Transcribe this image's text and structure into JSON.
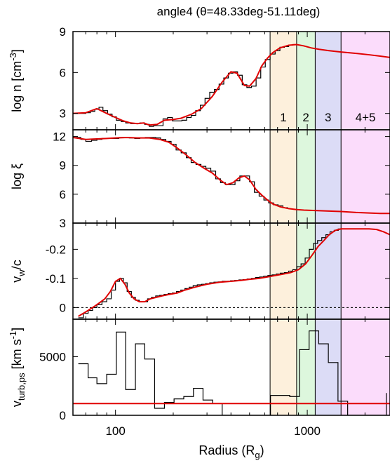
{
  "title": "angle4 (θ=48.33deg-51.11deg)",
  "colors": {
    "data_black": "#000000",
    "model_red": "#e00000",
    "region1": "#fdf0dc",
    "region2": "#ddf7dd",
    "region3": "#dcdcf6",
    "region45": "#fbdcfb"
  },
  "chart_data": {
    "type": "line",
    "x_scale": "log",
    "xlabel": "Radius (Rg)",
    "xlabel_main": "Radius (R",
    "xlabel_sub": "g",
    "xlabel_end": ")",
    "xlim": [
      60,
      2700
    ],
    "x_ticks": [
      100,
      1000
    ],
    "x_tick_labels": [
      "100",
      "1000"
    ],
    "regions": [
      {
        "label": "1",
        "x_range": [
          640,
          880
        ]
      },
      {
        "label": "2",
        "x_range": [
          880,
          1100
        ]
      },
      {
        "label": "3",
        "x_range": [
          1100,
          1500
        ]
      },
      {
        "label": "4+5",
        "x_range": [
          1500,
          2700
        ]
      }
    ],
    "panels": [
      {
        "ylabel": "log n [cm-3]",
        "ylabel_parts": {
          "main": "log n [cm",
          "sup": "-3",
          "end": "]"
        },
        "ylim": [
          1.8,
          9
        ],
        "y_ticks": [
          3,
          6,
          9
        ],
        "y_tick_labels": [
          "3",
          "6",
          "9"
        ],
        "show_region_labels": true,
        "series": [
          {
            "name": "histogram",
            "style": "step",
            "color": "black",
            "x": [
              60,
              66,
              70,
              74,
              78,
              82,
              86,
              91,
              96,
              101,
              107,
              113,
              120,
              127,
              134,
              142,
              150,
              158,
              167,
              177,
              187,
              198,
              210,
              222,
              235,
              248,
              262,
              277,
              293,
              310,
              328,
              347,
              367,
              388,
              410,
              433,
              458,
              484,
              512,
              541,
              572,
              604,
              640,
              680,
              720,
              760,
              800,
              840,
              880
            ],
            "y": [
              3.0,
              3.0,
              3.05,
              3.15,
              3.3,
              3.45,
              3.2,
              2.95,
              2.75,
              2.5,
              2.4,
              2.3,
              2.25,
              2.25,
              2.3,
              2.2,
              2.05,
              2.1,
              2.1,
              2.6,
              2.7,
              2.45,
              2.45,
              2.5,
              2.7,
              2.85,
              3.2,
              3.6,
              4.1,
              4.55,
              4.75,
              5.15,
              5.6,
              5.95,
              6.05,
              5.8,
              5.1,
              4.9,
              5.0,
              5.6,
              6.4,
              6.95,
              7.35,
              7.6,
              7.85,
              7.9,
              8.0,
              8.05,
              8.05
            ]
          },
          {
            "name": "model",
            "style": "line",
            "color": "red",
            "x": [
              60,
              70,
              80,
              90,
              100,
              110,
              120,
              130,
              140,
              150,
              165,
              180,
              200,
              220,
              250,
              280,
              320,
              360,
              400,
              430,
              470,
              500,
              540,
              580,
              620,
              660,
              720,
              800,
              880,
              960,
              1050,
              1150,
              1300,
              1500,
              1800,
              2100,
              2400,
              2700
            ],
            "y": [
              3.0,
              3.05,
              3.35,
              3.0,
              2.7,
              2.45,
              2.3,
              2.25,
              2.3,
              2.15,
              2.2,
              2.5,
              2.55,
              2.65,
              2.95,
              3.35,
              4.25,
              5.3,
              6.05,
              5.95,
              5.05,
              5.0,
              5.55,
              6.5,
              7.05,
              7.45,
              7.8,
              8.0,
              8.05,
              7.95,
              7.8,
              7.7,
              7.6,
              7.5,
              7.4,
              7.3,
              7.2,
              7.1
            ]
          }
        ]
      },
      {
        "ylabel": "log ξ",
        "ylim": [
          3,
          12.7
        ],
        "y_ticks": [
          3,
          6,
          9,
          12
        ],
        "y_tick_labels": [
          "3",
          "6",
          "9",
          "12"
        ],
        "series": [
          {
            "name": "histogram",
            "style": "step",
            "color": "black",
            "x": [
              60,
              66,
              70,
              75,
              80,
              85,
              91,
              97,
              104,
              111,
              118,
              126,
              134,
              143,
              152,
              162,
              172,
              183,
              195,
              207,
              220,
              234,
              248,
              263,
              279,
              296,
              314,
              333,
              353,
              374,
              396,
              420,
              445,
              472,
              500,
              530,
              561,
              594,
              629,
              666,
              705,
              746,
              790
            ],
            "y": [
              11.9,
              11.7,
              11.5,
              11.6,
              11.7,
              11.8,
              11.8,
              11.8,
              11.9,
              11.9,
              11.85,
              11.8,
              11.85,
              11.9,
              11.9,
              11.85,
              11.7,
              11.5,
              11.2,
              10.6,
              10.3,
              9.8,
              9.3,
              9.1,
              8.9,
              8.7,
              8.4,
              7.6,
              7.2,
              7.0,
              7.0,
              7.4,
              7.9,
              7.9,
              7.3,
              6.2,
              5.8,
              5.4,
              5.1,
              4.9,
              4.8,
              4.6,
              4.5
            ]
          },
          {
            "name": "model",
            "style": "line",
            "color": "red",
            "x": [
              60,
              70,
              80,
              90,
              100,
              115,
              130,
              150,
              170,
              190,
              210,
              230,
              260,
              290,
              320,
              350,
              380,
              410,
              440,
              470,
              500,
              540,
              580,
              620,
              660,
              720,
              800,
              880,
              960,
              1100,
              1300,
              1500,
              1800,
              2100,
              2400,
              2700
            ],
            "y": [
              11.9,
              11.7,
              11.75,
              11.8,
              11.85,
              11.9,
              11.85,
              11.85,
              11.7,
              11.4,
              10.8,
              10.2,
              9.3,
              8.7,
              8.2,
              7.5,
              7.0,
              7.2,
              7.7,
              7.9,
              7.5,
              6.5,
              5.9,
              5.4,
              5.0,
              4.7,
              4.5,
              4.4,
              4.35,
              4.3,
              4.25,
              4.2,
              4.1,
              4.05,
              4.0,
              4.0
            ]
          }
        ]
      },
      {
        "ylabel": "vw/c",
        "ylabel_parts": {
          "main": "v",
          "sub": "w",
          "end": "/c"
        },
        "ylim": [
          0.04,
          -0.29
        ],
        "y_ticks": [
          0,
          -0.1,
          -0.2
        ],
        "y_tick_labels": [
          "0",
          "-0.1",
          "-0.2"
        ],
        "reference_line": {
          "y": 0,
          "style": "dashed"
        },
        "series": [
          {
            "name": "histogram",
            "style": "step",
            "color": "black",
            "x": [
              64,
              68,
              72,
              76,
              80,
              85,
              90,
              95,
              100,
              105,
              110,
              115,
              121,
              127,
              133,
              140,
              147,
              154,
              162,
              170,
              179,
              188,
              198,
              208,
              219,
              230,
              242,
              254,
              267,
              281,
              295,
              310,
              326,
              343,
              360,
              378,
              398,
              418,
              440,
              462,
              486,
              511,
              537,
              564,
              593,
              623,
              655,
              688,
              723,
              760,
              799,
              840,
              883,
              928,
              975,
              1025,
              1077,
              1132,
              1190,
              1250,
              1314,
              1381,
              1451,
              1525
            ],
            "y": [
              0.035,
              0.02,
              0.01,
              0.0,
              -0.01,
              -0.02,
              -0.03,
              -0.06,
              -0.09,
              -0.1,
              -0.085,
              -0.055,
              -0.035,
              -0.025,
              -0.02,
              -0.02,
              -0.03,
              -0.035,
              -0.04,
              -0.042,
              -0.045,
              -0.048,
              -0.05,
              -0.055,
              -0.06,
              -0.065,
              -0.07,
              -0.075,
              -0.078,
              -0.08,
              -0.082,
              -0.085,
              -0.087,
              -0.088,
              -0.09,
              -0.09,
              -0.092,
              -0.093,
              -0.095,
              -0.096,
              -0.098,
              -0.1,
              -0.103,
              -0.105,
              -0.108,
              -0.11,
              -0.112,
              -0.115,
              -0.118,
              -0.12,
              -0.125,
              -0.13,
              -0.14,
              -0.15,
              -0.17,
              -0.2,
              -0.22,
              -0.23,
              -0.24,
              -0.25,
              -0.26,
              -0.265,
              -0.27,
              -0.27
            ]
          },
          {
            "name": "model",
            "style": "line",
            "color": "red",
            "x": [
              64,
              70,
              76,
              82,
              88,
              94,
              100,
              106,
              112,
              118,
              125,
              133,
              142,
              152,
              163,
              175,
              190,
              210,
              230,
              260,
              300,
              350,
              400,
              450,
              500,
              560,
              620,
              680,
              750,
              820,
              900,
              980,
              1060,
              1140,
              1220,
              1300,
              1400,
              1500,
              1700,
              1900,
              2100,
              2300,
              2500,
              2700
            ],
            "y": [
              0.03,
              0.015,
              0.0,
              -0.015,
              -0.03,
              -0.055,
              -0.09,
              -0.1,
              -0.08,
              -0.05,
              -0.03,
              -0.02,
              -0.02,
              -0.03,
              -0.035,
              -0.04,
              -0.045,
              -0.05,
              -0.06,
              -0.07,
              -0.08,
              -0.087,
              -0.09,
              -0.093,
              -0.097,
              -0.1,
              -0.105,
              -0.11,
              -0.115,
              -0.12,
              -0.13,
              -0.15,
              -0.18,
              -0.21,
              -0.23,
              -0.25,
              -0.265,
              -0.27,
              -0.27,
              -0.27,
              -0.27,
              -0.268,
              -0.26,
              -0.25
            ]
          }
        ]
      },
      {
        "ylabel": "vturb,ps [km s-1]",
        "ylabel_parts": {
          "main": "v",
          "sub": "turb,ps",
          "mid": " [km s",
          "sup": "-1",
          "end": "]"
        },
        "ylim": [
          0,
          8200
        ],
        "y_ticks": [
          0,
          5000
        ],
        "y_tick_labels": [
          "0",
          "5000"
        ],
        "series": [
          {
            "name": "histogram",
            "style": "step",
            "color": "black",
            "x": [
              64,
              72,
              80,
              90,
              101,
              113,
              127,
              142,
              160,
              180,
              202,
              227,
              255,
              286,
              321,
              360,
              404,
              454,
              510,
              572,
              643,
              722,
              810,
              910,
              1022,
              1147,
              1288,
              1446,
              1624,
              1823,
              2047,
              2299,
              2580
            ],
            "y": [
              4400,
              3200,
              2700,
              3500,
              7100,
              2200,
              6100,
              4800,
              600,
              1100,
              1400,
              1600,
              2300,
              1300,
              1000,
              0,
              0,
              0,
              0,
              0,
              1700,
              1700,
              1600,
              5600,
              7200,
              6100,
              4500,
              1200,
              0,
              0,
              0,
              0,
              1900
            ]
          },
          {
            "name": "model",
            "style": "line",
            "color": "red",
            "x": [
              60,
              2700
            ],
            "y": [
              1000,
              1000
            ]
          }
        ]
      }
    ]
  }
}
